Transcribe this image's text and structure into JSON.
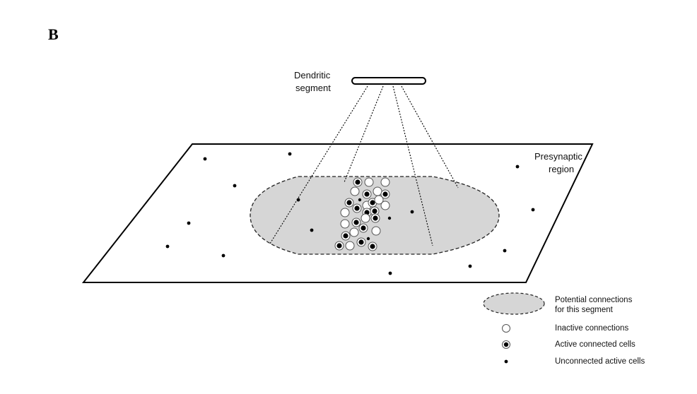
{
  "figure": {
    "panel_letter": "B",
    "dendritic_segment_label": [
      "Dendritic",
      "segment"
    ],
    "presynaptic_region_label": [
      "Presynaptic",
      "region"
    ]
  },
  "legend": {
    "potential": [
      "Potential connections",
      "for this segment"
    ],
    "inactive": "Inactive connections",
    "active_connected": "Active connected cells",
    "unconnected": "Unconnected active cells"
  },
  "colors": {
    "potential_fill": "#d6d6d6",
    "stroke": "#000000",
    "cell_fill": "#000000"
  }
}
